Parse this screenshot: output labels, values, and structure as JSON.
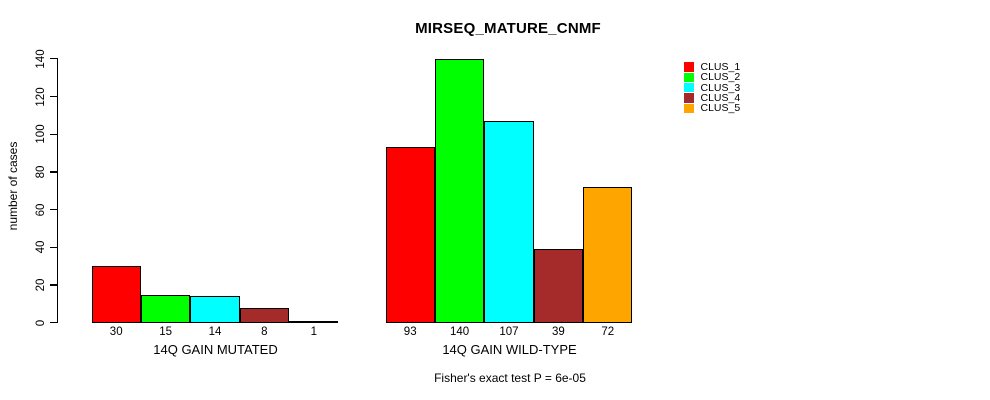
{
  "window": {
    "background": "#FFFFFF"
  },
  "chart_data": {
    "type": "bar",
    "title": "MIRSEQ_MATURE_CNMF",
    "ylabel": "number of cases",
    "xlabel": "",
    "ylim": [
      0,
      140
    ],
    "yticks": [
      0,
      20,
      40,
      60,
      80,
      100,
      120,
      140
    ],
    "grid": false,
    "legend_position": "right",
    "bar_border_color": "#000000",
    "categories": [
      "14Q GAIN MUTATED",
      "14Q GAIN WILD-TYPE"
    ],
    "series": [
      {
        "name": "CLUS_1",
        "color": "#FF0000",
        "values": [
          30,
          93
        ]
      },
      {
        "name": "CLUS_2",
        "color": "#00FF00",
        "values": [
          15,
          140
        ]
      },
      {
        "name": "CLUS_3",
        "color": "#00FFFF",
        "values": [
          14,
          107
        ]
      },
      {
        "name": "CLUS_4",
        "color": "#A52A2A",
        "values": [
          8,
          39
        ]
      },
      {
        "name": "CLUS_5",
        "color": "#FFA500",
        "values": [
          1,
          72
        ]
      }
    ],
    "bar_value_labels": {
      "group1": [
        30,
        15,
        14,
        8,
        1
      ],
      "group2": [
        93,
        140,
        107,
        39,
        72
      ]
    },
    "annotation": "Fisher's exact test P = 6e-05"
  }
}
